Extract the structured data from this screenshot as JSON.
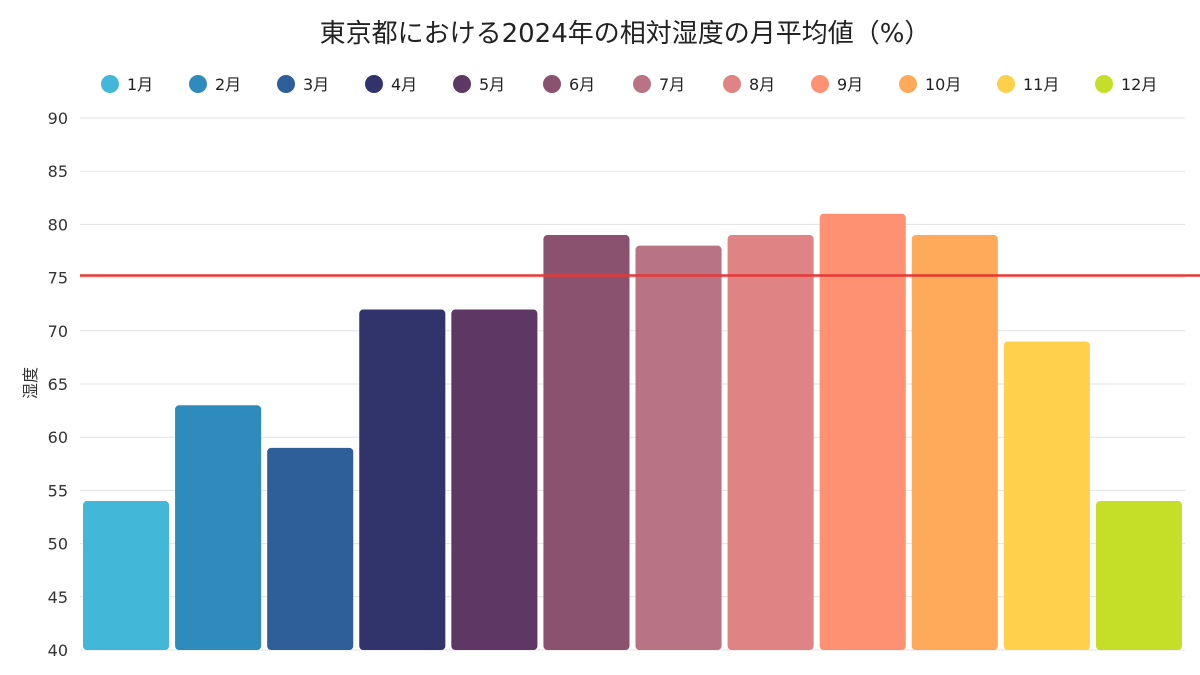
{
  "chart_data": {
    "type": "bar",
    "title": "東京都における2024年の相対湿度の月平均値（%）",
    "ylabel": "湿度",
    "xlabel": "",
    "categories": [
      "1月",
      "2月",
      "3月",
      "4月",
      "5月",
      "6月",
      "7月",
      "8月",
      "9月",
      "10月",
      "11月",
      "12月"
    ],
    "values": [
      54,
      63,
      59,
      72,
      72,
      79,
      78,
      79,
      81,
      79,
      69,
      54
    ],
    "colors": [
      "#42b7d7",
      "#2e8bbb",
      "#2e5f98",
      "#30346b",
      "#5e3764",
      "#8b5270",
      "#b87384",
      "#e08384",
      "#ff9173",
      "#ffa95a",
      "#ffd04b",
      "#c5df28"
    ],
    "ylim": [
      40,
      90
    ],
    "yticks": [
      40,
      45,
      50,
      55,
      60,
      65,
      70,
      75,
      80,
      85,
      90
    ],
    "reference_line": {
      "value": 75.2,
      "color": "#e53935"
    },
    "grid": true,
    "legend": "top"
  }
}
